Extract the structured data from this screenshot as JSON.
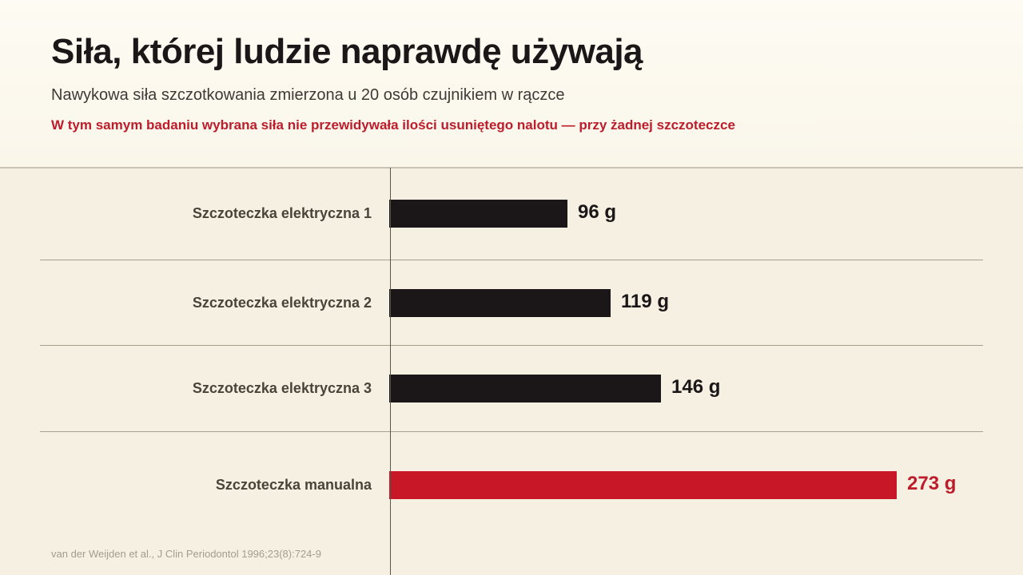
{
  "header": {
    "title": "Siła, której ludzie naprawdę używają",
    "subtitle": "Nawykowa siła szczotkowania zmierzona u 20 osób czujnikiem w rączce",
    "note": "W tym samym badaniu wybrana siła nie przewidywała ilości usuniętego nalotu — przy żadnej szczoteczce"
  },
  "source": "van der Weijden et al., J Clin Periodontol 1996;23(8):724-9",
  "colors": {
    "default_bar": "#1b1718",
    "highlight_bar": "#c81827",
    "default_value_text": "#1b1718",
    "highlight_value_text": "#bd1c2b"
  },
  "chart_data": {
    "type": "bar",
    "orientation": "horizontal",
    "title": "Siła, której ludzie naprawdę używają",
    "subtitle": "Nawykowa siła szczotkowania zmierzona u 20 osób czujnikiem w rączce",
    "categories": [
      "Szczoteczka elektryczna 1",
      "Szczoteczka elektryczna 2",
      "Szczoteczka elektryczna 3",
      "Szczoteczka manualna"
    ],
    "values": [
      96,
      119,
      146,
      273
    ],
    "unit": "g",
    "value_labels": [
      "96 g",
      "119 g",
      "146 g",
      "273 g"
    ],
    "highlight_index": 3,
    "xlim": [
      0,
      273
    ],
    "grid": true
  }
}
